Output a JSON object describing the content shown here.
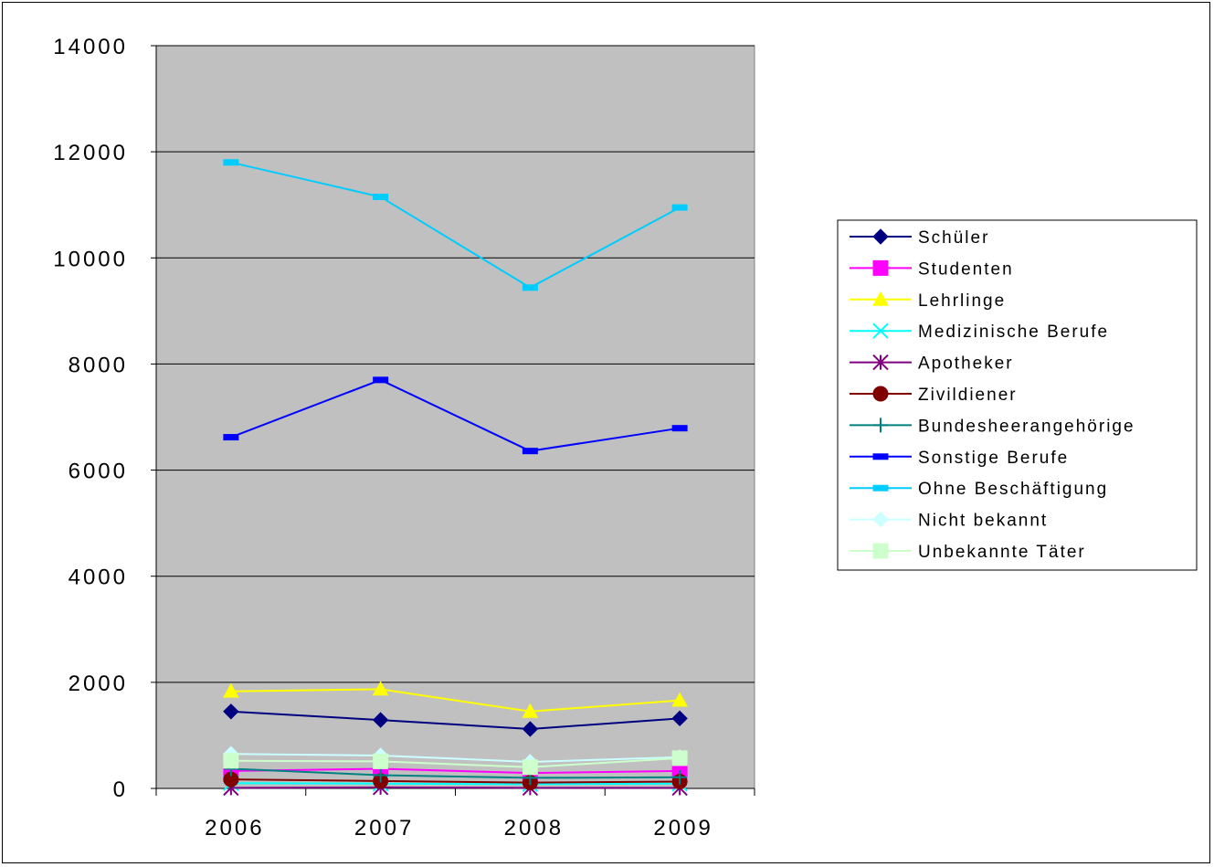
{
  "chart_data": {
    "type": "line",
    "categories": [
      "2006",
      "2007",
      "2008",
      "2009"
    ],
    "ylim": [
      0,
      14000
    ],
    "yticks": [
      0,
      2000,
      4000,
      6000,
      8000,
      10000,
      12000,
      14000
    ],
    "ytick_labels": [
      "0",
      "2000",
      "4000",
      "6000",
      "8000",
      "10000",
      "12000",
      "14000"
    ],
    "grid": true,
    "plot_background": "#c0c0c0",
    "legend_position": "right",
    "series": [
      {
        "name": "Schüler",
        "values": [
          1450,
          1290,
          1120,
          1320
        ],
        "color": "#000080",
        "marker": "diamond"
      },
      {
        "name": "Studenten",
        "values": [
          330,
          370,
          290,
          330
        ],
        "color": "#ff00ff",
        "marker": "square"
      },
      {
        "name": "Lehrlinge",
        "values": [
          1830,
          1870,
          1450,
          1660
        ],
        "color": "#ffff00",
        "marker": "triangle"
      },
      {
        "name": "Medizinische Berufe",
        "values": [
          100,
          90,
          80,
          90
        ],
        "color": "#00ffff",
        "marker": "x"
      },
      {
        "name": "Apotheker",
        "values": [
          10,
          20,
          10,
          10
        ],
        "color": "#800080",
        "marker": "star"
      },
      {
        "name": "Zivildiener",
        "values": [
          170,
          140,
          110,
          130
        ],
        "color": "#800000",
        "marker": "circle"
      },
      {
        "name": "Bundesheerangehörige",
        "values": [
          370,
          250,
          200,
          210
        ],
        "color": "#008080",
        "marker": "plus"
      },
      {
        "name": "Sonstige Berufe",
        "values": [
          6620,
          7700,
          6360,
          6790
        ],
        "color": "#0000ff",
        "marker": "dash"
      },
      {
        "name": "Ohne Beschäftigung",
        "values": [
          11800,
          11150,
          9440,
          10950
        ],
        "color": "#00ccff",
        "marker": "dash"
      },
      {
        "name": "Nicht bekannt",
        "values": [
          650,
          620,
          500,
          590
        ],
        "color": "#ccffff",
        "marker": "diamond"
      },
      {
        "name": "Unbekannte Täter",
        "values": [
          520,
          510,
          400,
          570
        ],
        "color": "#ccffcc",
        "marker": "square"
      }
    ]
  }
}
